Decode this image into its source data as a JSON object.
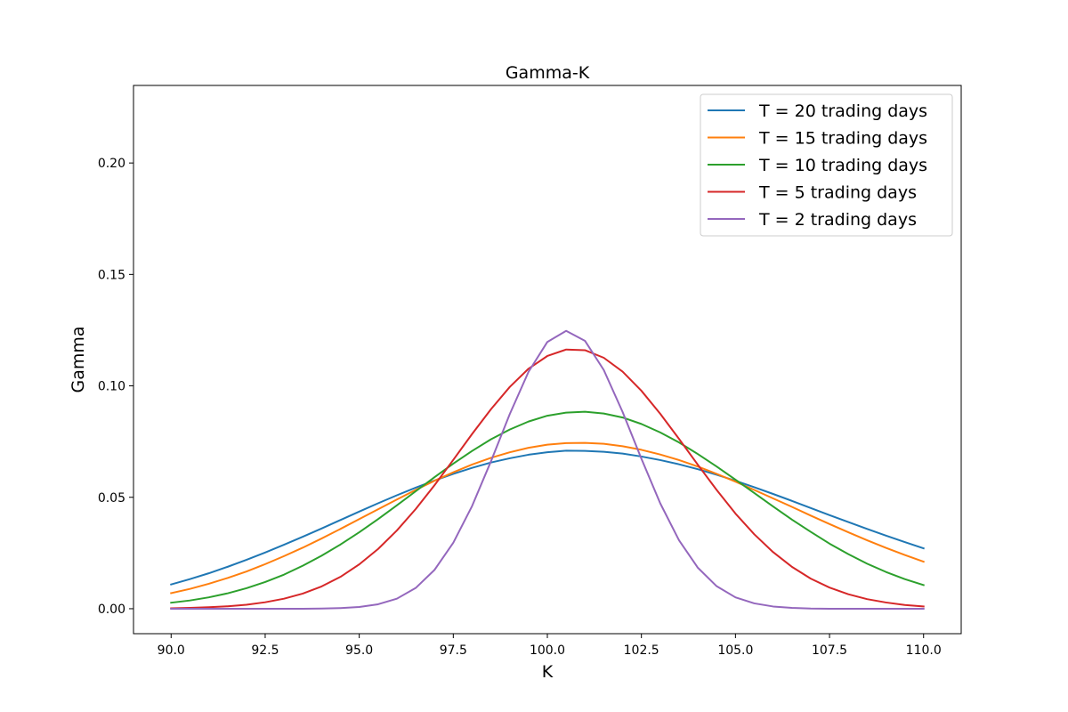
{
  "chart_data": {
    "type": "line",
    "title": "Gamma-K",
    "xlabel": "K",
    "ylabel": "Gamma",
    "xlim": [
      89.0,
      111.0
    ],
    "ylim": [
      -0.0112,
      0.2348
    ],
    "xticks": [
      90.0,
      92.5,
      95.0,
      97.5,
      100.0,
      102.5,
      105.0,
      107.5,
      110.0
    ],
    "xtick_labels": [
      "90.0",
      "92.5",
      "95.0",
      "97.5",
      "100.0",
      "102.5",
      "105.0",
      "107.5",
      "110.0"
    ],
    "yticks": [
      0.0,
      0.05,
      0.1,
      0.15,
      0.2
    ],
    "ytick_labels": [
      "0.00",
      "0.05",
      "0.10",
      "0.15",
      "0.20"
    ],
    "grid": false,
    "legend_position": "top-right",
    "x": [
      90.0,
      90.5,
      91.0,
      91.5,
      92.0,
      92.5,
      93.0,
      93.5,
      94.0,
      94.5,
      95.0,
      95.5,
      96.0,
      96.5,
      97.0,
      97.5,
      98.0,
      98.5,
      99.0,
      99.5,
      100.0,
      100.5,
      101.0,
      101.5,
      102.0,
      102.5,
      103.0,
      103.5,
      104.0,
      104.5,
      105.0,
      105.5,
      106.0,
      106.5,
      107.0,
      107.5,
      108.0,
      108.5,
      109.0,
      109.5,
      110.0
    ],
    "series": [
      {
        "name": "T = 20 trading days",
        "color": "#1f77b4",
        "values": [
          0.0109,
          0.0133,
          0.0159,
          0.0188,
          0.0219,
          0.0252,
          0.0287,
          0.0323,
          0.036,
          0.0398,
          0.0436,
          0.0473,
          0.0509,
          0.0543,
          0.0575,
          0.0605,
          0.0632,
          0.0656,
          0.0675,
          0.0691,
          0.0702,
          0.0709,
          0.0708,
          0.0704,
          0.0696,
          0.0683,
          0.0667,
          0.0648,
          0.0626,
          0.0601,
          0.0574,
          0.0545,
          0.0515,
          0.0484,
          0.0452,
          0.042,
          0.0389,
          0.0358,
          0.0328,
          0.0299,
          0.0271
        ]
      },
      {
        "name": "T = 15 trading days",
        "color": "#ff7f0e",
        "values": [
          0.007,
          0.0089,
          0.0112,
          0.0138,
          0.0167,
          0.02,
          0.0236,
          0.0274,
          0.0315,
          0.0358,
          0.0402,
          0.0446,
          0.049,
          0.0533,
          0.0574,
          0.0612,
          0.0647,
          0.0677,
          0.0702,
          0.0722,
          0.0736,
          0.0743,
          0.0744,
          0.074,
          0.0729,
          0.0713,
          0.0692,
          0.0667,
          0.0638,
          0.0605,
          0.057,
          0.0533,
          0.0495,
          0.0457,
          0.0418,
          0.038,
          0.0343,
          0.0307,
          0.0273,
          0.0241,
          0.0211
        ]
      },
      {
        "name": "T = 10 trading days",
        "color": "#2ca02c",
        "values": [
          0.0027,
          0.0037,
          0.0051,
          0.0069,
          0.0092,
          0.012,
          0.0153,
          0.0193,
          0.0238,
          0.0288,
          0.0343,
          0.0402,
          0.0464,
          0.0527,
          0.059,
          0.0651,
          0.0708,
          0.076,
          0.0804,
          0.084,
          0.0866,
          0.088,
          0.0884,
          0.0876,
          0.0858,
          0.0829,
          0.0791,
          0.0746,
          0.0694,
          0.0638,
          0.0579,
          0.0519,
          0.0459,
          0.04,
          0.0345,
          0.0292,
          0.0245,
          0.0202,
          0.0165,
          0.0133,
          0.0106
        ]
      },
      {
        "name": "T = 5 trading days",
        "color": "#d62728",
        "values": [
          0.0002,
          0.0004,
          0.0007,
          0.0011,
          0.0018,
          0.0029,
          0.0045,
          0.0068,
          0.01,
          0.0143,
          0.0199,
          0.0268,
          0.0351,
          0.0447,
          0.0554,
          0.0668,
          0.0784,
          0.0895,
          0.0995,
          0.1077,
          0.1134,
          0.1163,
          0.116,
          0.1126,
          0.1064,
          0.0978,
          0.0875,
          0.0762,
          0.0646,
          0.0533,
          0.0427,
          0.0334,
          0.0254,
          0.0188,
          0.0135,
          0.0095,
          0.0065,
          0.0043,
          0.0028,
          0.0017,
          0.001
        ]
      },
      {
        "name": "T = 2 trading days",
        "color": "#9467bd",
        "values": [
          0.0,
          0.0,
          0.0,
          0.0,
          0.0,
          0.0,
          0.0,
          0.0,
          0.0001,
          0.0003,
          0.0008,
          0.002,
          0.0045,
          0.0093,
          0.0174,
          0.0296,
          0.0461,
          0.0661,
          0.0873,
          0.1063,
          0.1197,
          0.1247,
          0.1202,
          0.1071,
          0.0883,
          0.0673,
          0.0473,
          0.0307,
          0.0184,
          0.0101,
          0.0051,
          0.0024,
          0.001,
          0.0004,
          0.0001,
          0.0,
          0.0,
          0.0,
          0.0,
          0.0,
          0.0
        ]
      }
    ]
  }
}
